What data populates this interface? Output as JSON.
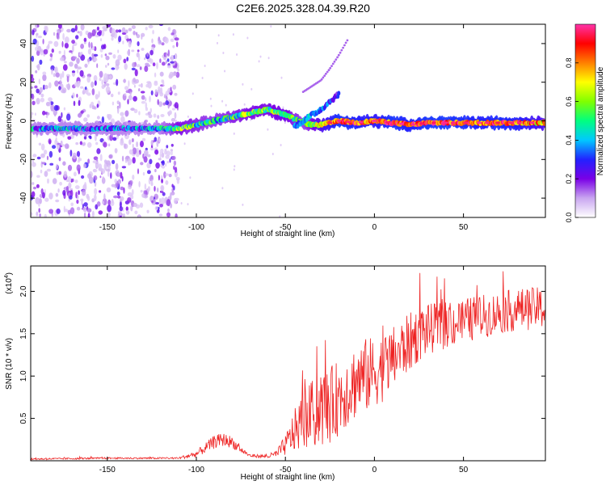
{
  "title": "C2E6.2025.328.04.39.R20",
  "chart_data": [
    {
      "type": "heatmap",
      "name": "spectrogram",
      "xlabel": "Height of straight line (km)",
      "ylabel": "Frequency (Hz)",
      "xlim": [
        -193,
        96
      ],
      "ylim": [
        -50,
        50
      ],
      "xticks": [
        "-150",
        "-100",
        "-50",
        "0",
        "50"
      ],
      "xtick_values": [
        -150,
        -100,
        -50,
        0,
        50
      ],
      "yticks": [
        "-40",
        "-20",
        "0",
        "20",
        "40"
      ],
      "ytick_values": [
        -40,
        -20,
        0,
        20,
        40
      ],
      "colorbar": {
        "label": "Normalized spectral amplitude",
        "range": [
          0,
          1
        ],
        "ticks": [
          "0.0",
          "0.2",
          "0.4",
          "0.6",
          "0.8"
        ],
        "tick_values": [
          0.0,
          0.2,
          0.4,
          0.6,
          0.8
        ],
        "colors": [
          "#ffffff",
          "#c9a6f0",
          "#7a00e6",
          "#2222ff",
          "#00c8ff",
          "#00ff80",
          "#80ff00",
          "#ffff00",
          "#ff8000",
          "#ff0000",
          "#ff33aa"
        ]
      },
      "ridge": {
        "x": [
          -193,
          -180,
          -160,
          -140,
          -120,
          -110,
          -100,
          -90,
          -80,
          -70,
          -60,
          -50,
          -45,
          -40,
          -35,
          -30,
          -20,
          -10,
          0,
          10,
          20,
          30,
          40,
          50,
          60,
          70,
          80,
          96
        ],
        "freq": [
          -4,
          -4,
          -4,
          -4,
          -4,
          -4,
          -2,
          0,
          2,
          4,
          6,
          3,
          1,
          -1,
          -2,
          -2,
          0,
          -1,
          0,
          -1,
          -2,
          -1,
          -1,
          -1,
          -1,
          -1,
          -1,
          -1
        ],
        "amp": [
          0.35,
          0.35,
          0.32,
          0.3,
          0.35,
          0.55,
          0.5,
          0.45,
          0.5,
          0.55,
          0.55,
          0.6,
          0.5,
          0.45,
          0.55,
          0.7,
          0.9,
          0.85,
          0.8,
          0.9,
          0.85,
          0.9,
          0.9,
          0.88,
          0.85,
          0.88,
          0.85,
          0.7
        ]
      },
      "branch": {
        "x": [
          -45,
          -40,
          -35,
          -30,
          -25,
          -20
        ],
        "freq": [
          -3,
          0,
          3,
          6,
          10,
          14
        ],
        "amp": [
          0.35,
          0.4,
          0.4,
          0.35,
          0.3,
          0.25
        ]
      },
      "faint_streak": {
        "x": [
          -40,
          -30,
          -25,
          -20,
          -15
        ],
        "freq": [
          15,
          21,
          27,
          34,
          42
        ]
      }
    },
    {
      "type": "line",
      "name": "snr",
      "xlabel": "Height of straight line (km)",
      "ylabel": "SNR (10 * v/v)",
      "scale_label": "(x10",
      "scale_exp": "4",
      "xlim": [
        -193,
        96
      ],
      "ylim": [
        0,
        2.3
      ],
      "xticks": [
        "-150",
        "-100",
        "-50",
        "0",
        "50"
      ],
      "xtick_values": [
        -150,
        -100,
        -50,
        0,
        50
      ],
      "yticks": [
        "0.5",
        "1.0",
        "1.5",
        "2.0"
      ],
      "ytick_values": [
        0.5,
        1.0,
        1.5,
        2.0
      ],
      "color": "#ee2222",
      "series": [
        {
          "name": "SNR",
          "envelope_x": [
            -193,
            -150,
            -110,
            -100,
            -95,
            -90,
            -85,
            -80,
            -75,
            -70,
            -60,
            -55,
            -50,
            -45,
            -40,
            -35,
            -30,
            -25,
            -20,
            -15,
            -10,
            -5,
            0,
            5,
            10,
            15,
            20,
            25,
            30,
            40,
            50,
            60,
            70,
            80,
            90,
            96
          ],
          "envelope_y": [
            0.02,
            0.03,
            0.03,
            0.08,
            0.15,
            0.22,
            0.25,
            0.22,
            0.13,
            0.06,
            0.05,
            0.08,
            0.18,
            0.35,
            0.48,
            0.55,
            0.6,
            0.65,
            0.75,
            0.85,
            0.95,
            1.0,
            1.05,
            1.1,
            1.2,
            1.3,
            1.4,
            1.5,
            1.55,
            1.6,
            1.65,
            1.7,
            1.75,
            1.78,
            1.8,
            1.8
          ],
          "noise": [
            0.01,
            0.01,
            0.01,
            0.04,
            0.06,
            0.08,
            0.08,
            0.07,
            0.04,
            0.02,
            0.02,
            0.05,
            0.12,
            0.25,
            0.35,
            0.4,
            0.45,
            0.45,
            0.45,
            0.45,
            0.45,
            0.45,
            0.42,
            0.4,
            0.38,
            0.36,
            0.35,
            0.33,
            0.3,
            0.28,
            0.27,
            0.26,
            0.25,
            0.25,
            0.25,
            0.25
          ]
        }
      ]
    }
  ]
}
